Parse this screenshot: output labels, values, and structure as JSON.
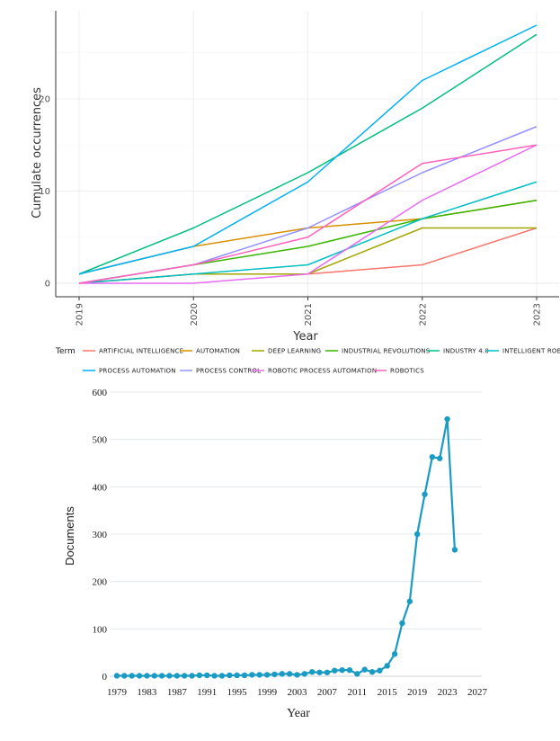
{
  "chart_data": [
    {
      "type": "line",
      "title": "",
      "xlabel": "Year",
      "ylabel": "Cumulate occurrences",
      "x": [
        "2019",
        "2020",
        "2021",
        "2022",
        "2023"
      ],
      "ylim": [
        0,
        28
      ],
      "yticks": [
        "0",
        "10",
        "20"
      ],
      "legend_title": "Term",
      "series": [
        {
          "name": "ARTIFICIAL INTELLIGENCE",
          "color": "#f8766d",
          "values": [
            0,
            1,
            1,
            2,
            6
          ]
        },
        {
          "name": "AUTOMATION",
          "color": "#d89000",
          "values": [
            1,
            4,
            6,
            7,
            9
          ]
        },
        {
          "name": "DEEP LEARNING",
          "color": "#a3a500",
          "values": [
            0,
            1,
            1,
            6,
            6
          ]
        },
        {
          "name": "INDUSTRIAL REVOLUTIONS",
          "color": "#39b600",
          "values": [
            0,
            2,
            4,
            7,
            9
          ]
        },
        {
          "name": "INDUSTRY 4.0",
          "color": "#00bf7d",
          "values": [
            1,
            6,
            12,
            19,
            27
          ]
        },
        {
          "name": "INTELLIGENT ROBOTS",
          "color": "#00bfc4",
          "values": [
            0,
            1,
            2,
            7,
            11
          ]
        },
        {
          "name": "PROCESS AUTOMATION",
          "color": "#00b0f6",
          "values": [
            1,
            4,
            11,
            22,
            28
          ]
        },
        {
          "name": "PROCESS CONTROL",
          "color": "#9590ff",
          "values": [
            0,
            2,
            6,
            12,
            17
          ]
        },
        {
          "name": "ROBOTIC PROCESS AUTOMATION",
          "color": "#e76bf3",
          "values": [
            0,
            0,
            1,
            9,
            15
          ]
        },
        {
          "name": "ROBOTICS",
          "color": "#ff62bc",
          "values": [
            0,
            2,
            5,
            13,
            15
          ]
        }
      ]
    },
    {
      "type": "line",
      "title": "",
      "xlabel": "Year",
      "ylabel": "Documents",
      "color": "#1a9bc4",
      "xlim": [
        1978,
        2027
      ],
      "ylim": [
        0,
        600
      ],
      "xticks": [
        "1979",
        "1983",
        "1987",
        "1991",
        "1995",
        "1999",
        "2003",
        "2007",
        "2011",
        "2015",
        "2019",
        "2023",
        "2027"
      ],
      "yticks": [
        "0",
        "100",
        "200",
        "300",
        "400",
        "500",
        "600"
      ],
      "x": [
        1979,
        1980,
        1981,
        1982,
        1983,
        1984,
        1985,
        1986,
        1987,
        1988,
        1989,
        1990,
        1991,
        1992,
        1993,
        1994,
        1995,
        1996,
        1997,
        1998,
        1999,
        2000,
        2001,
        2002,
        2003,
        2004,
        2005,
        2006,
        2007,
        2008,
        2009,
        2010,
        2011,
        2012,
        2013,
        2014,
        2015,
        2016,
        2017,
        2018,
        2019,
        2020,
        2021,
        2022,
        2023,
        2024
      ],
      "values": [
        1,
        1,
        1,
        1,
        1,
        1,
        1,
        1,
        1,
        1,
        1,
        2,
        2,
        1,
        1,
        2,
        2,
        2,
        3,
        3,
        3,
        4,
        5,
        5,
        3,
        5,
        9,
        8,
        8,
        12,
        13,
        13,
        5,
        14,
        9,
        12,
        22,
        47,
        112,
        158,
        300,
        384,
        463,
        460,
        543,
        267
      ]
    }
  ]
}
